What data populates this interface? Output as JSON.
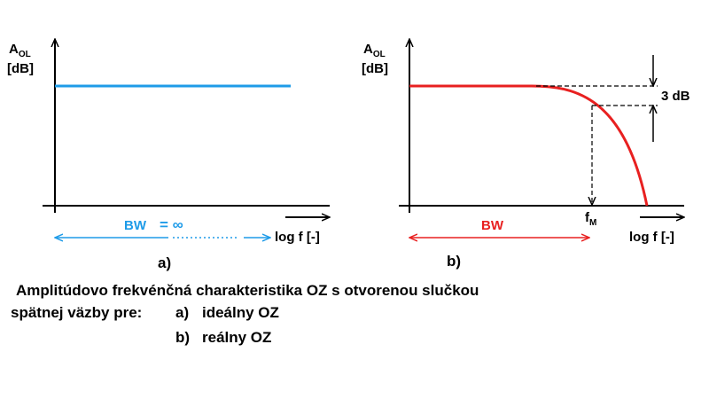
{
  "diagrams": [
    {
      "y_axis_label": {
        "main": "A",
        "sub": "OL",
        "unit": "[dB]"
      },
      "x_axis_label": "log f [-]",
      "bandwidth_label": "BW",
      "bandwidth_value": "= ∞",
      "caption": "a)"
    },
    {
      "y_axis_label": {
        "main": "A",
        "sub": "OL",
        "unit": "[dB]"
      },
      "x_axis_label": "log f [-]",
      "drop_label": "3 dB",
      "corner_label": {
        "main": "f",
        "sub": "M"
      },
      "bandwidth_label": "BW",
      "caption": "b)"
    }
  ],
  "description": {
    "line1": "Amplitúdovo frekvénčná charakteristika OZ s otvorenou slučkou",
    "line2": "spätnej väzby pre:",
    "items": [
      {
        "marker": "a)",
        "text": "ideálny OZ"
      },
      {
        "marker": "b)",
        "text": "reálny OZ"
      }
    ]
  }
}
